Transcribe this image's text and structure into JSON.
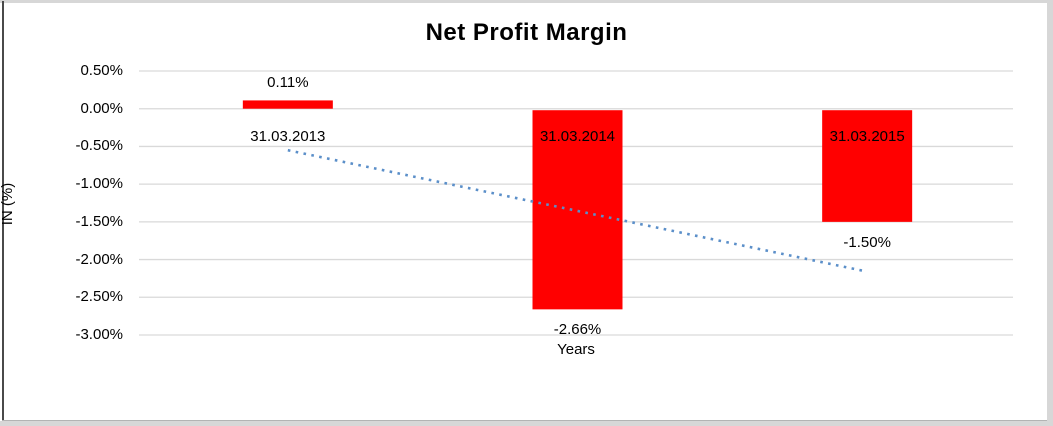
{
  "chart_data": {
    "type": "bar",
    "title": "Net Profit Margin",
    "xlabel": "Years",
    "ylabel": "IN (%)",
    "categories": [
      "31.03.2013",
      "31.03.2014",
      "31.03.2015"
    ],
    "series": [
      {
        "name": "Net Profit Margin",
        "values": [
          0.11,
          -2.66,
          -1.5
        ],
        "value_labels": [
          "0.11%",
          "-2.66%",
          "-1.50%"
        ],
        "color": "#ff0000"
      }
    ],
    "ylim": [
      0.5,
      -3.0
    ],
    "yticks": [
      0.5,
      0.0,
      -0.5,
      -1.0,
      -1.5,
      -2.0,
      -2.5,
      -3.0
    ],
    "ytick_labels": [
      "0.50%",
      "0.00%",
      "-0.50%",
      "-1.00%",
      "-1.50%",
      "-2.00%",
      "-2.50%",
      "-3.00%"
    ],
    "grid": true,
    "gridline_color": "#d9d9d9",
    "legend": "none",
    "trendline": {
      "type": "linear",
      "style": "dotted",
      "color": "#5b8fc9",
      "start_value": -0.55,
      "end_value": -2.16
    },
    "frame_color": "#d7d7d7",
    "text_color": "#000000"
  }
}
